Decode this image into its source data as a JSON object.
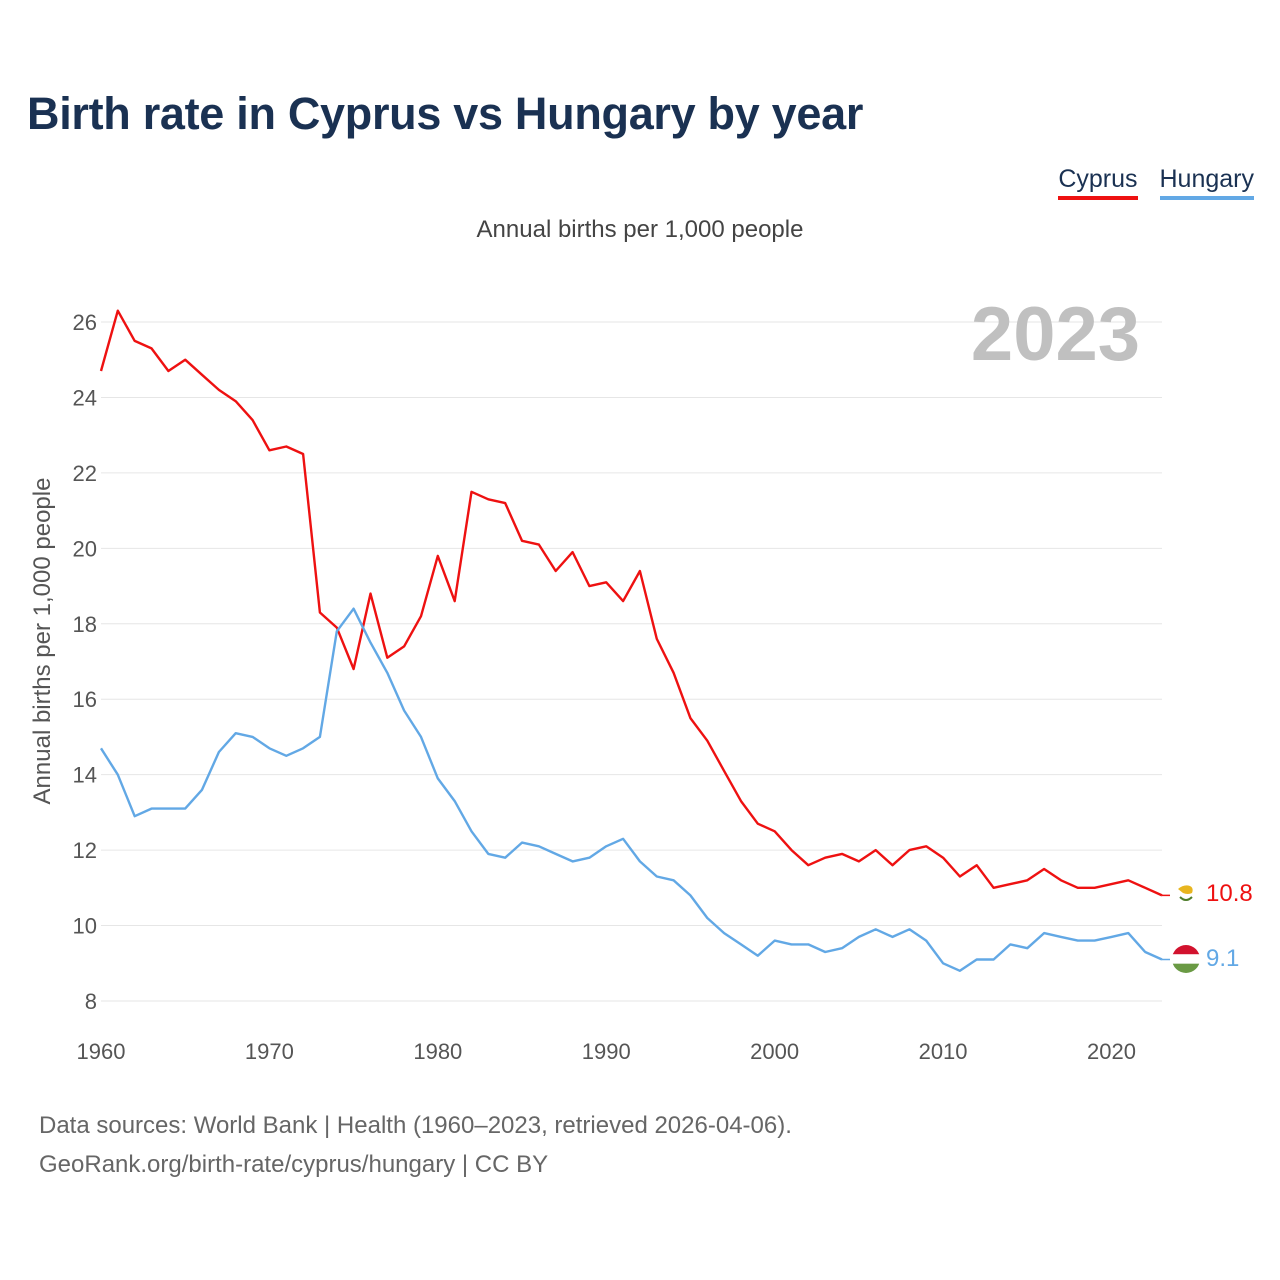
{
  "chart_data": {
    "type": "line",
    "title": "Birth rate in Cyprus vs Hungary by year",
    "subtitle": "Annual births per 1,000 people",
    "ylabel": "Annual births per 1,000 people",
    "xlabel": "",
    "year_label": "2023",
    "xlim": [
      1960,
      2023
    ],
    "ylim": [
      8,
      26.5
    ],
    "x_ticks": [
      1960,
      1970,
      1980,
      1990,
      2000,
      2010,
      2020
    ],
    "y_ticks": [
      8,
      10,
      12,
      14,
      16,
      18,
      20,
      22,
      24,
      26
    ],
    "grid": true,
    "legend_position": "top-right",
    "x": [
      1960,
      1961,
      1962,
      1963,
      1964,
      1965,
      1966,
      1967,
      1968,
      1969,
      1970,
      1971,
      1972,
      1973,
      1974,
      1975,
      1976,
      1977,
      1978,
      1979,
      1980,
      1981,
      1982,
      1983,
      1984,
      1985,
      1986,
      1987,
      1988,
      1989,
      1990,
      1991,
      1992,
      1993,
      1994,
      1995,
      1996,
      1997,
      1998,
      1999,
      2000,
      2001,
      2002,
      2003,
      2004,
      2005,
      2006,
      2007,
      2008,
      2009,
      2010,
      2011,
      2012,
      2013,
      2014,
      2015,
      2016,
      2017,
      2018,
      2019,
      2020,
      2021,
      2022,
      2023
    ],
    "series": [
      {
        "name": "Cyprus",
        "color": "#ee1111",
        "end_label": "10.8",
        "values": [
          24.7,
          26.3,
          25.5,
          25.3,
          24.7,
          25.0,
          24.6,
          24.2,
          23.9,
          23.4,
          22.6,
          22.7,
          22.5,
          18.3,
          17.9,
          16.8,
          18.8,
          17.1,
          17.4,
          18.2,
          19.8,
          18.6,
          21.5,
          21.3,
          21.2,
          20.2,
          20.1,
          19.4,
          19.9,
          19.0,
          19.1,
          18.6,
          19.4,
          17.6,
          16.7,
          15.5,
          14.9,
          14.1,
          13.3,
          12.7,
          12.5,
          12.0,
          11.6,
          11.8,
          11.9,
          11.7,
          12.0,
          11.6,
          12.0,
          12.1,
          11.8,
          11.3,
          11.6,
          11.0,
          11.1,
          11.2,
          11.5,
          11.2,
          11.0,
          11.0,
          11.1,
          11.2,
          11.0,
          10.8
        ]
      },
      {
        "name": "Hungary",
        "color": "#62a8e5",
        "end_label": "9.1",
        "values": [
          14.7,
          14.0,
          12.9,
          13.1,
          13.1,
          13.1,
          13.6,
          14.6,
          15.1,
          15.0,
          14.7,
          14.5,
          14.7,
          15.0,
          17.8,
          18.4,
          17.5,
          16.7,
          15.7,
          15.0,
          13.9,
          13.3,
          12.5,
          11.9,
          11.8,
          12.2,
          12.1,
          11.9,
          11.7,
          11.8,
          12.1,
          12.3,
          11.7,
          11.3,
          11.2,
          10.8,
          10.2,
          9.8,
          9.5,
          9.2,
          9.6,
          9.5,
          9.5,
          9.3,
          9.4,
          9.7,
          9.9,
          9.7,
          9.9,
          9.6,
          9.0,
          8.8,
          9.1,
          9.1,
          9.5,
          9.4,
          9.8,
          9.7,
          9.6,
          9.6,
          9.7,
          9.8,
          9.3,
          9.1
        ]
      }
    ]
  },
  "source": {
    "line1": "Data sources: World Bank | Health (1960–2023, retrieved 2026-04-06).",
    "line2": "GeoRank.org/birth-rate/cyprus/hungary | CC BY"
  }
}
